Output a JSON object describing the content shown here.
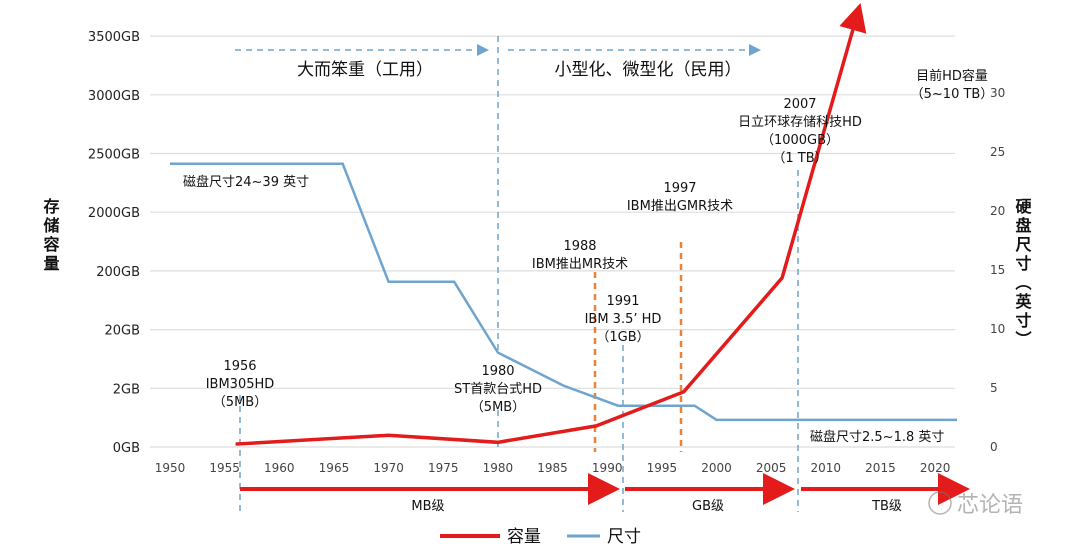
{
  "chart_data": {
    "type": "line",
    "title": "",
    "x_ticks": [
      "1950",
      "1955",
      "1960",
      "1965",
      "1970",
      "1975",
      "1980",
      "1985",
      "1990",
      "1995",
      "2000",
      "2005",
      "2010",
      "2015",
      "2020"
    ],
    "xlim": [
      1950,
      2022
    ],
    "left_axis": {
      "label": "存储容量",
      "ticks": [
        "0GB",
        "2GB",
        "20GB",
        "200GB",
        "2000GB",
        "2500GB",
        "3000GB",
        "3500GB"
      ]
    },
    "right_axis": {
      "label": "硬盘尺寸（英寸）",
      "ticks": [
        "0",
        "5",
        "10",
        "15",
        "20",
        "25",
        "30"
      ],
      "ylim": [
        0,
        30
      ]
    },
    "grid": true,
    "legend": {
      "position": "bottom",
      "items": [
        "容量",
        "尺寸"
      ]
    },
    "series": [
      {
        "name": "容量",
        "color": "#e31b1b",
        "axis": "left (tick level index)",
        "points": [
          [
            1956,
            0.05
          ],
          [
            1970,
            0.2
          ],
          [
            1980,
            0.08
          ],
          [
            1989,
            0.36
          ],
          [
            1997,
            0.94
          ],
          [
            2006,
            2.88
          ],
          [
            2013,
            7.45
          ]
        ]
      },
      {
        "name": "尺寸",
        "color": "#6fa4cf",
        "axis": "right",
        "points": [
          [
            1950,
            24
          ],
          [
            1965.8,
            24
          ],
          [
            1970,
            14
          ],
          [
            1976,
            14
          ],
          [
            1980,
            8
          ],
          [
            1986,
            5.2
          ],
          [
            1991,
            3.5
          ],
          [
            1998,
            3.5
          ],
          [
            2000,
            2.3
          ],
          [
            2022,
            2.3
          ]
        ]
      }
    ],
    "eras": [
      {
        "label": "大而笨重（工用）"
      },
      {
        "label": "小型化、微型化（民用）"
      }
    ],
    "levels": [
      {
        "label": "MB级"
      },
      {
        "label": "GB级"
      },
      {
        "label": "TB级"
      }
    ],
    "annotations": {
      "a1956": [
        "1956",
        "IBM305HD",
        "（5MB）"
      ],
      "a1980": [
        "1980",
        "ST首款台式HD",
        "（5MB）"
      ],
      "a1988": [
        "1988",
        "IBM推出MR技术"
      ],
      "a1991": [
        "1991",
        "IBM 3.5’ HD",
        "（1GB）"
      ],
      "a1997": [
        "1997",
        "IBM推出GMR技术"
      ],
      "a2007": [
        "2007",
        "日立环球存储科技HD",
        "（1000GB）",
        "（1 TB）"
      ],
      "now": [
        "目前HD容量",
        "（5~10 TB）"
      ],
      "size_old": "磁盘尺寸24~39 英寸",
      "size_new": "磁盘尺寸2.5~1.8 英寸"
    },
    "watermark": "芯论语"
  }
}
